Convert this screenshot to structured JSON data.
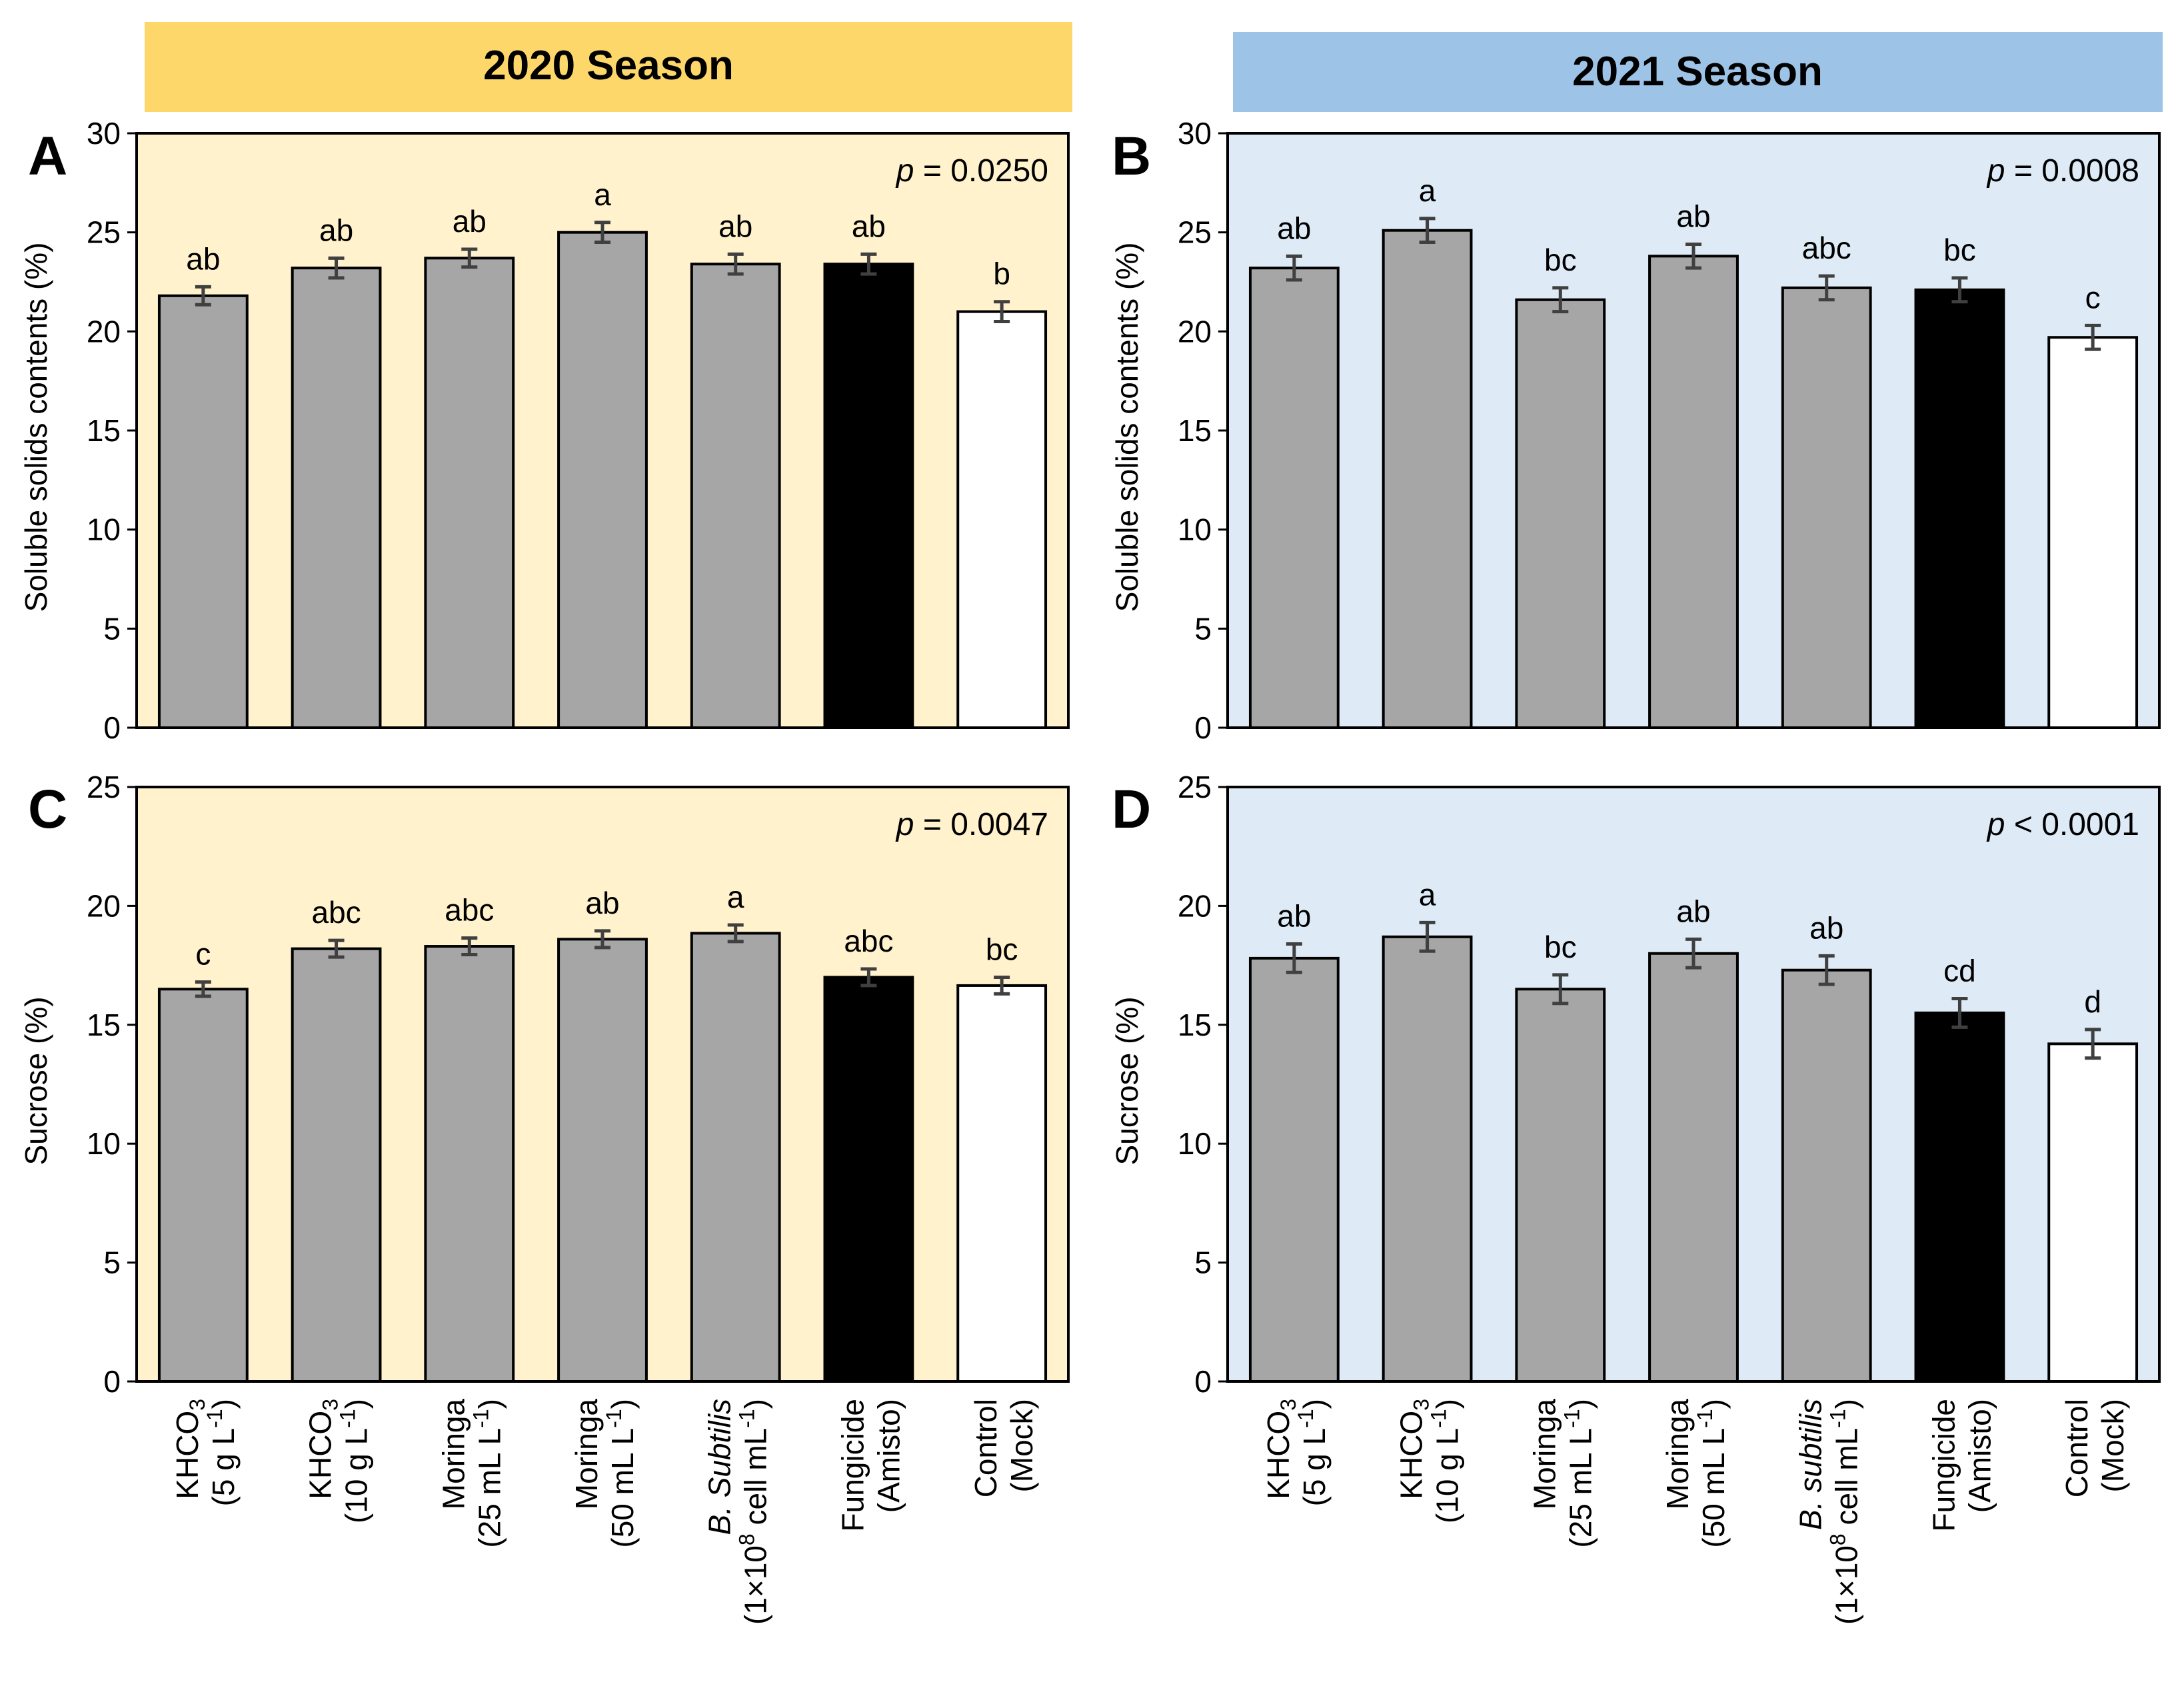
{
  "seasons": [
    {
      "label": "2020 Season",
      "color": "#FDD769"
    },
    {
      "label": "2021 Season",
      "color": "#9DC3E6"
    }
  ],
  "colors": {
    "bg_2020": "#FFF2CC",
    "bg_2021": "#DEEBF7",
    "gray_bar": "#A6A6A6",
    "fungicide_bar": "#000000",
    "control_bar": "#FFFFFF",
    "error_bar": "#404040"
  },
  "categories": [
    {
      "line1": "KHCO",
      "line1_sub": "3",
      "line2": "(5 g L",
      "line2_sup": "-1",
      "line2_end": ")"
    },
    {
      "line1": "KHCO",
      "line1_sub": "3",
      "line2": "(10 g L",
      "line2_sup": "-1",
      "line2_end": ")"
    },
    {
      "line1": "Moringa",
      "line2": "(25 mL L",
      "line2_sup": "-1",
      "line2_end": ")"
    },
    {
      "line1": "Moringa",
      "line2": "(50 mL L",
      "line2_sup": "-1",
      "line2_end": ")"
    },
    {
      "line1_italic": "B. Subtilis",
      "line2": "(1×10",
      "line2_sup": "8",
      "line2_end": " cell mL",
      "line2_sup2": "-1",
      "line2_end2": ")"
    },
    {
      "line1": "Fungicide",
      "line2": "(Amisto)"
    },
    {
      "line1": "Control",
      "line2": "(Mock)"
    }
  ],
  "categories_2021": [
    {
      "line1": "KHCO",
      "line1_sub": "3",
      "line2": "(5 g L",
      "line2_sup": "-1",
      "line2_end": ")"
    },
    {
      "line1": "KHCO",
      "line1_sub": "3",
      "line2": "(10 g L",
      "line2_sup": "-1",
      "line2_end": ")"
    },
    {
      "line1": "Moringa",
      "line2": "(25 mL L",
      "line2_sup": "-1",
      "line2_end": ")"
    },
    {
      "line1": "Moringa",
      "line2": "(50 mL L",
      "line2_sup": "-1",
      "line2_end": ")"
    },
    {
      "line1_italic": "B. subtilis",
      "line2": "(1×10",
      "line2_sup": "8",
      "line2_end": " cell mL",
      "line2_sup2": "-1",
      "line2_end2": ")"
    },
    {
      "line1": "Fungicide",
      "line2": "(Amisto)"
    },
    {
      "line1": "Control",
      "line2": "(Mock)"
    }
  ],
  "chart_data": [
    {
      "type": "bar",
      "panel": "A",
      "season": "2020 Season",
      "ylabel": "Soluble  solids contents (%)",
      "ylim": [
        0,
        30
      ],
      "yticks": [
        0,
        5,
        10,
        15,
        20,
        25,
        30
      ],
      "p_prefix": "p",
      "p_text": " = 0.0250",
      "values": [
        21.8,
        23.2,
        23.7,
        25.0,
        23.4,
        23.4,
        21.0
      ],
      "errors": [
        0.45,
        0.5,
        0.45,
        0.5,
        0.5,
        0.5,
        0.5
      ],
      "letters": [
        "ab",
        "ab",
        "ab",
        "a",
        "ab",
        "ab",
        "b"
      ]
    },
    {
      "type": "bar",
      "panel": "B",
      "season": "2021 Season",
      "ylabel": "Soluble  solids contents (%)",
      "ylim": [
        0,
        30
      ],
      "yticks": [
        0,
        5,
        10,
        15,
        20,
        25,
        30
      ],
      "p_prefix": "p",
      "p_text": " = 0.0008",
      "values": [
        23.2,
        25.1,
        21.6,
        23.8,
        22.2,
        22.1,
        19.7
      ],
      "errors": [
        0.6,
        0.6,
        0.6,
        0.6,
        0.6,
        0.6,
        0.6
      ],
      "letters": [
        "ab",
        "a",
        "bc",
        "ab",
        "abc",
        "bc",
        "c"
      ]
    },
    {
      "type": "bar",
      "panel": "C",
      "season": "2020 Season",
      "ylabel": "Sucrose (%)",
      "ylim": [
        0,
        25
      ],
      "yticks": [
        0,
        5,
        10,
        15,
        20,
        25
      ],
      "p_prefix": "p",
      "p_text": " = 0.0047",
      "values": [
        16.5,
        18.2,
        18.3,
        18.6,
        18.85,
        17.0,
        16.65
      ],
      "errors": [
        0.3,
        0.35,
        0.35,
        0.35,
        0.35,
        0.35,
        0.35
      ],
      "letters": [
        "c",
        "abc",
        "abc",
        "ab",
        "a",
        "abc",
        "bc"
      ]
    },
    {
      "type": "bar",
      "panel": "D",
      "season": "2021 Season",
      "ylabel": "Sucrose (%)",
      "ylim": [
        0,
        25
      ],
      "yticks": [
        0,
        5,
        10,
        15,
        20,
        25
      ],
      "p_prefix": "p",
      "p_text": " < 0.0001",
      "values": [
        17.8,
        18.7,
        16.5,
        18.0,
        17.3,
        15.5,
        14.2
      ],
      "errors": [
        0.6,
        0.6,
        0.6,
        0.6,
        0.6,
        0.6,
        0.6
      ],
      "letters": [
        "ab",
        "a",
        "bc",
        "ab",
        "ab",
        "cd",
        "d"
      ]
    }
  ]
}
